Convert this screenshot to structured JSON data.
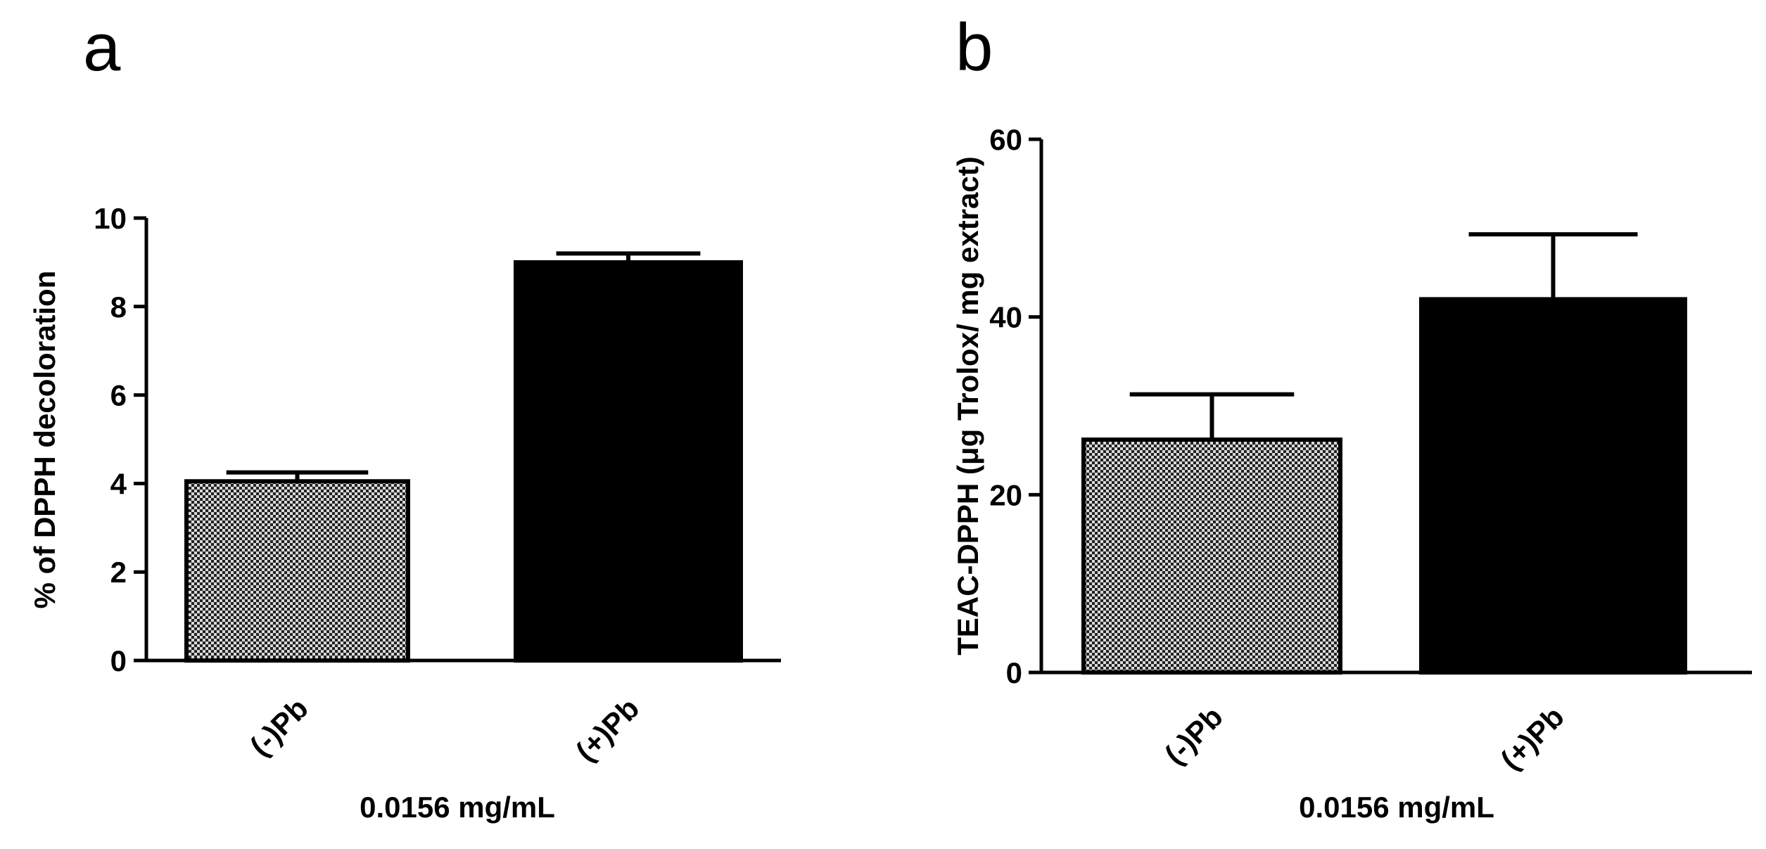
{
  "chart_data": [
    {
      "type": "bar",
      "panel_label": "a",
      "title": "",
      "categories": [
        "(-)Pb",
        "(+)Pb"
      ],
      "values": [
        4.05,
        9.0
      ],
      "errors": [
        0.2,
        0.2
      ],
      "bar_styles": [
        "checkered",
        "solid"
      ],
      "xlabel": "0.0156 mg/mL",
      "ylabel": "% of DPPH decoloration",
      "ylim": [
        0,
        10
      ],
      "yticks": [
        0,
        2,
        4,
        6,
        8,
        10
      ],
      "ytick_labels": [
        "0",
        "2",
        "4",
        "6",
        "8",
        "10"
      ],
      "grid": false,
      "legend": false
    },
    {
      "type": "bar",
      "panel_label": "b",
      "title": "",
      "categories": [
        "(-)Pb",
        "(+)Pb"
      ],
      "values": [
        26.2,
        42.0
      ],
      "errors": [
        5.1,
        7.3
      ],
      "bar_styles": [
        "checkered",
        "solid"
      ],
      "xlabel": "0.0156 mg/mL",
      "ylabel": "TEAC-DPPH (μg Trolox/ mg extract)",
      "ylim": [
        0,
        60
      ],
      "yticks": [
        0,
        20,
        40,
        60
      ],
      "ytick_labels": [
        "0",
        "20",
        "40",
        "60"
      ],
      "grid": false,
      "legend": false
    }
  ],
  "colors": {
    "solid_bar": "#000000",
    "checker_dark": "#222222",
    "checker_light": "#d9d9d9",
    "axis": "#000000"
  }
}
